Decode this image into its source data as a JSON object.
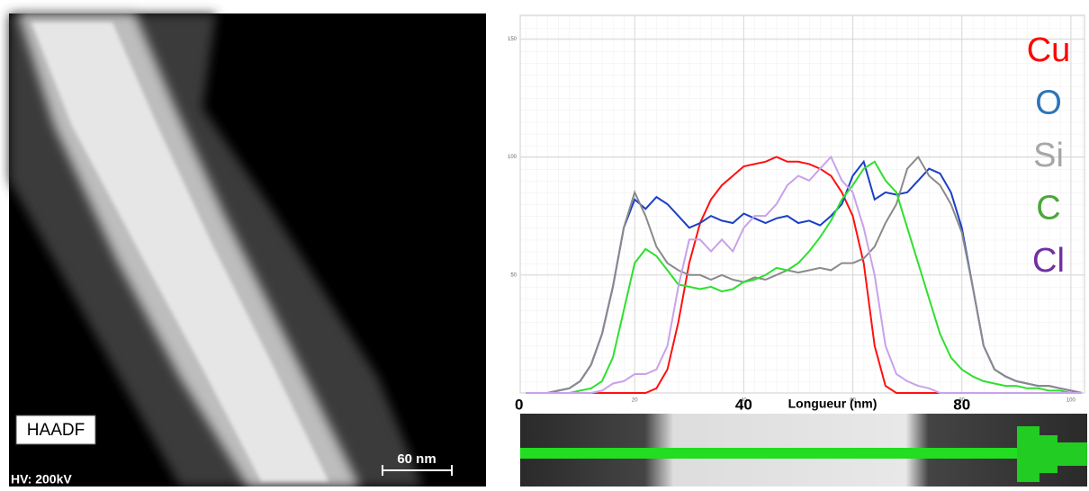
{
  "image": {
    "label": "HAADF",
    "scale_bar": "60 nm",
    "voltage": "HV: 200kV"
  },
  "chart_data": {
    "type": "line",
    "xlabel": "Longueur (nm)",
    "xlim": [
      -1,
      102.5
    ],
    "ylim": [
      0,
      160
    ],
    "xticks": [
      20,
      40,
      60,
      80,
      100
    ],
    "yticks": [
      50,
      100,
      150
    ],
    "large_xtick_labels": [
      0,
      40,
      80
    ],
    "grid": true,
    "x": [
      0,
      2,
      4,
      6,
      8,
      10,
      12,
      14,
      16,
      18,
      20,
      22,
      24,
      26,
      28,
      30,
      32,
      34,
      36,
      38,
      40,
      42,
      44,
      46,
      48,
      50,
      52,
      54,
      56,
      58,
      60,
      62,
      64,
      66,
      68,
      70,
      72,
      74,
      76,
      78,
      80,
      82,
      84,
      86,
      88,
      90,
      92,
      94,
      96,
      98,
      100,
      102
    ],
    "series": [
      {
        "name": "Cu",
        "color": "#ff1010",
        "label_color": "#ff0000",
        "values": [
          0,
          0,
          0,
          0,
          0,
          0,
          0,
          0,
          0,
          0,
          0,
          0,
          2,
          10,
          30,
          55,
          72,
          82,
          88,
          92,
          96,
          97,
          98,
          100,
          98,
          98,
          97,
          95,
          92,
          85,
          75,
          55,
          20,
          3,
          0,
          0,
          0,
          0,
          0,
          0,
          0,
          0,
          0,
          0,
          0,
          0,
          0,
          0,
          0,
          0,
          0,
          0
        ]
      },
      {
        "name": "O",
        "color": "#1a3fc8",
        "label_color": "#2e75b6",
        "values": [
          0,
          0,
          0,
          1,
          2,
          5,
          12,
          25,
          45,
          70,
          82,
          78,
          83,
          80,
          75,
          70,
          72,
          75,
          73,
          72,
          76,
          74,
          72,
          74,
          75,
          72,
          73,
          71,
          75,
          80,
          92,
          98,
          82,
          85,
          84,
          85,
          90,
          95,
          93,
          85,
          70,
          45,
          20,
          10,
          7,
          5,
          4,
          3,
          3,
          2,
          1,
          0
        ]
      },
      {
        "name": "Si",
        "color": "#8a8a8a",
        "label_color": "#a6a6a6",
        "values": [
          0,
          0,
          0,
          1,
          2,
          5,
          12,
          25,
          45,
          70,
          85,
          75,
          62,
          55,
          52,
          50,
          50,
          48,
          50,
          48,
          47,
          49,
          48,
          50,
          52,
          51,
          52,
          53,
          52,
          55,
          55,
          57,
          62,
          72,
          80,
          95,
          100,
          92,
          88,
          80,
          68,
          45,
          20,
          10,
          7,
          5,
          4,
          3,
          3,
          2,
          1,
          0
        ]
      },
      {
        "name": "C",
        "color": "#2ee02e",
        "label_color": "#4aa83a",
        "values": [
          0,
          0,
          0,
          0,
          0,
          1,
          2,
          5,
          15,
          35,
          55,
          61,
          58,
          52,
          46,
          45,
          44,
          45,
          43,
          44,
          47,
          48,
          50,
          53,
          52,
          55,
          60,
          66,
          73,
          82,
          88,
          95,
          98,
          90,
          85,
          70,
          55,
          40,
          25,
          15,
          10,
          7,
          5,
          4,
          3,
          3,
          2,
          2,
          1,
          1,
          0,
          0
        ]
      },
      {
        "name": "Cl",
        "color": "#c8a2ea",
        "label_color": "#7030a0",
        "values": [
          0,
          0,
          0,
          0,
          0,
          0,
          0,
          1,
          4,
          5,
          8,
          8,
          10,
          20,
          45,
          65,
          65,
          60,
          65,
          60,
          70,
          75,
          75,
          80,
          88,
          92,
          90,
          95,
          100,
          90,
          85,
          70,
          50,
          20,
          8,
          5,
          3,
          2,
          0,
          0,
          0,
          0,
          0,
          0,
          0,
          0,
          0,
          0,
          0,
          0,
          0,
          0
        ]
      }
    ]
  }
}
